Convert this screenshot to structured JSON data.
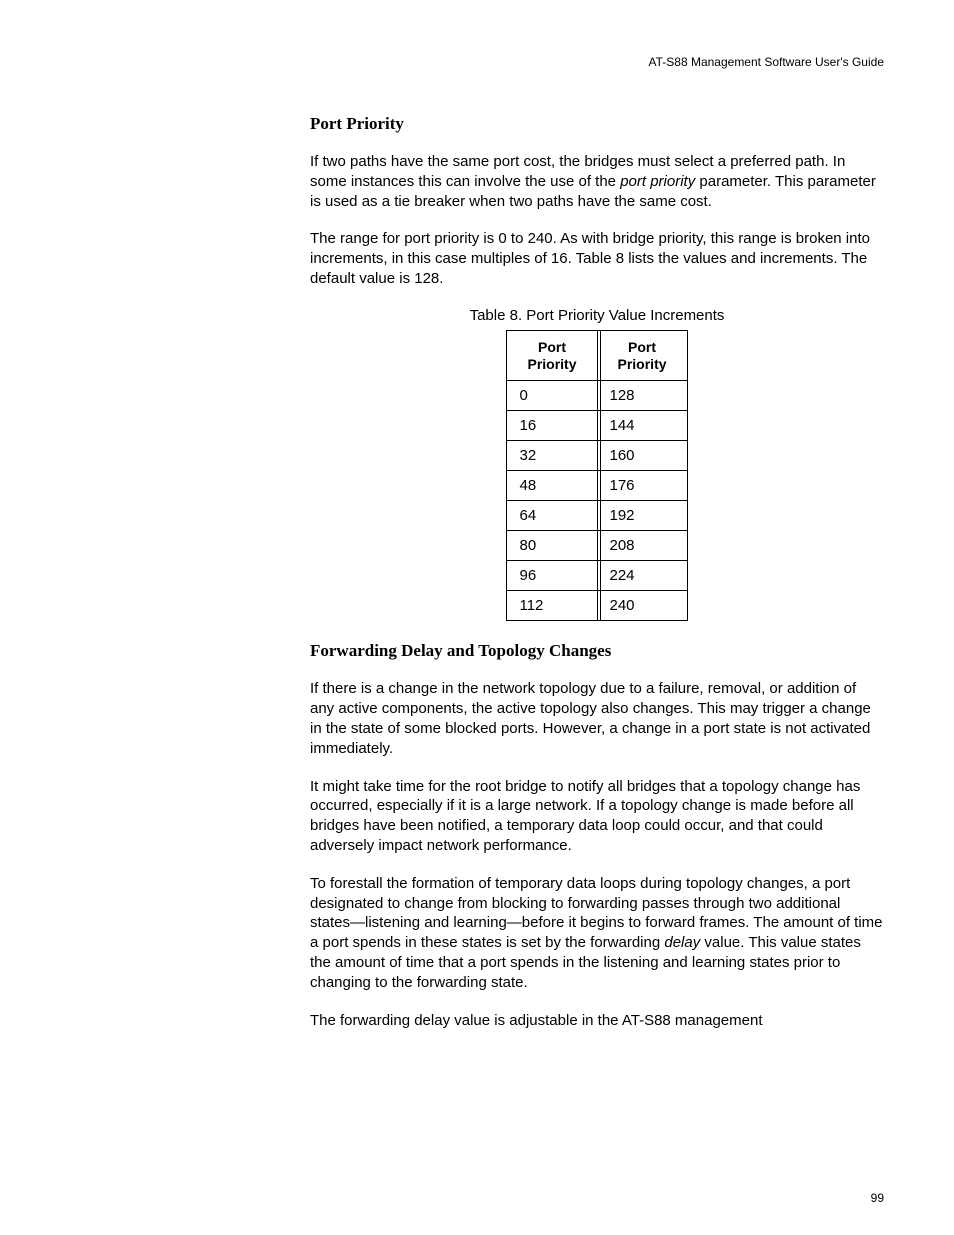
{
  "header": {
    "guide_title": "AT-S88 Management Software User's Guide"
  },
  "section1": {
    "heading": "Port Priority",
    "para1_a": "If two paths have the same port cost, the bridges must select a preferred path. In some instances this can involve the use of the ",
    "para1_italic": "port priority",
    "para1_b": " parameter. This parameter is used as a tie breaker when two paths have the same cost.",
    "para2": "The range for port priority is 0 to 240. As with bridge priority, this range is broken into increments, in this case multiples of 16. Table 8 lists the values and increments. The default value is 128."
  },
  "table": {
    "caption": "Table 8. Port Priority Value Increments",
    "header_col1": "Port\nPriority",
    "header_col2": "Port\nPriority",
    "rows": [
      [
        "0",
        "128"
      ],
      [
        "16",
        "144"
      ],
      [
        "32",
        "160"
      ],
      [
        "48",
        "176"
      ],
      [
        "64",
        "192"
      ],
      [
        "80",
        "208"
      ],
      [
        "96",
        "224"
      ],
      [
        "112",
        "240"
      ]
    ]
  },
  "section2": {
    "heading": "Forwarding Delay and Topology Changes",
    "para1": "If there is a change in the network topology due to a failure, removal, or addition of any active components, the active topology also changes. This may trigger a change in the state of some blocked ports. However, a change in a port state is not activated immediately.",
    "para2": "It might take time for the root bridge to notify all bridges that a topology change has occurred, especially if it is a large network. If a topology change is made before all bridges have been notified, a temporary data loop could occur, and that could adversely impact network performance.",
    "para3_a": "To forestall the formation of temporary data loops during topology changes, a port designated to change from blocking to forwarding passes through two additional states—listening and learning—before it begins to forward frames. The amount of time a port spends in these states is set by the forwarding ",
    "para3_italic": "delay",
    "para3_b": " value. This value states the amount of time that a port spends in the listening and learning states prior to changing to the forwarding state.",
    "para4": "The forwarding delay value is adjustable in the AT-S88 management"
  },
  "footer": {
    "page_number": "99"
  }
}
